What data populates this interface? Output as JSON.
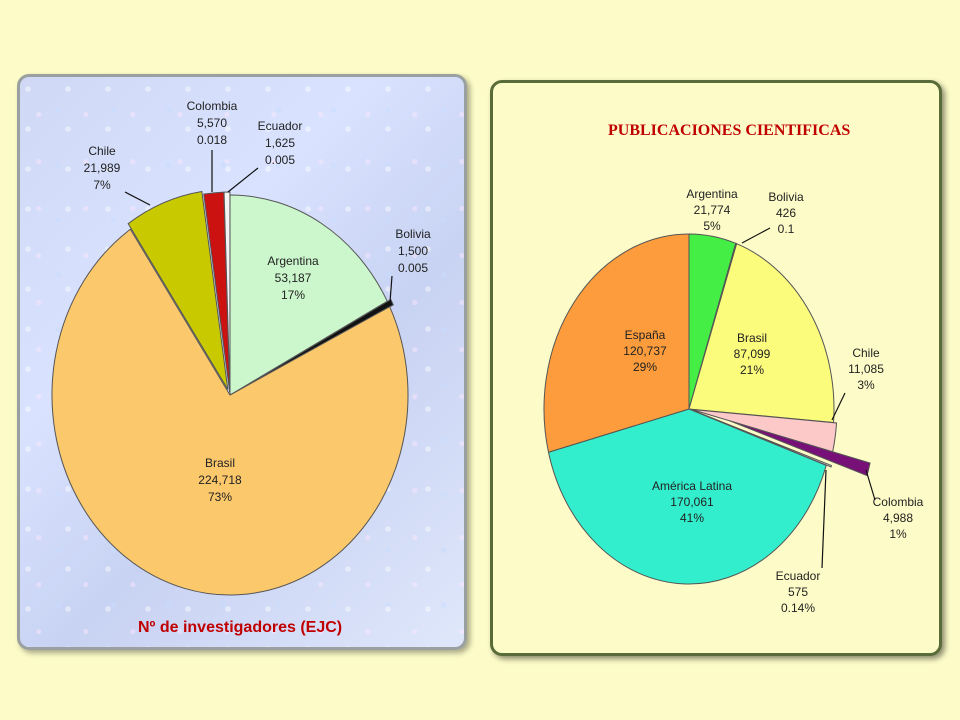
{
  "left_chart": {
    "title": "Nº de investigadores (EJC)",
    "slices": [
      {
        "name": "Argentina",
        "value_text": "53,187",
        "share_text": "17%",
        "value": 53187,
        "color": "#ccf7cc"
      },
      {
        "name": "Bolivia",
        "value_text": "1,500",
        "share_text": "0.005",
        "value": 1500,
        "color": "#111111"
      },
      {
        "name": "Brasil",
        "value_text": "224,718",
        "share_text": "73%",
        "value": 224718,
        "color": "#fcc86c"
      },
      {
        "name": "Chile",
        "value_text": "21,989",
        "share_text": "7%",
        "value": 21989,
        "color": "#c9c900"
      },
      {
        "name": "Colombia",
        "value_text": "5,570",
        "share_text": "0.018",
        "value": 5570,
        "color": "#cc1111"
      },
      {
        "name": "Ecuador",
        "value_text": "1,625",
        "share_text": "0.005",
        "value": 1625,
        "color": "#f4f4f4"
      }
    ]
  },
  "right_chart": {
    "title": "PUBLICACIONES CIENTIFICAS",
    "slices": [
      {
        "name": "Argentina",
        "value_text": "21,774",
        "share_text": "5%",
        "value": 21774,
        "color": "#44ee44"
      },
      {
        "name": "Brasil",
        "value_text": "87,099",
        "share_text": "21%",
        "value": 87099,
        "color": "#fcfc7c"
      },
      {
        "name": "Chile",
        "value_text": "11,085",
        "share_text": "3%",
        "value": 11085,
        "color": "#fcc8c8"
      },
      {
        "name": "Colombia",
        "value_text": "4,988",
        "share_text": "1%",
        "value": 4988,
        "color": "#771177"
      },
      {
        "name": "Ecuador",
        "value_text": "575",
        "share_text": "0.14%",
        "value": 575,
        "color": "#eeeeee"
      },
      {
        "name": "América Latina",
        "value_text": "170,061",
        "share_text": "41%",
        "value": 170061,
        "color": "#33eecc"
      },
      {
        "name": "España",
        "value_text": "120,737",
        "share_text": "29%",
        "value": 120737,
        "color": "#fc9c3c"
      },
      {
        "name": "Bolivia",
        "value_text": "426",
        "share_text": "0.1",
        "value": 426,
        "color": "#888888"
      }
    ]
  },
  "chart_data": [
    {
      "type": "pie",
      "title": "Nº de investigadores (EJC)",
      "categories": [
        "Argentina",
        "Bolivia",
        "Brasil",
        "Chile",
        "Colombia",
        "Ecuador"
      ],
      "values": [
        53187,
        1500,
        224718,
        21989,
        5570,
        1625
      ],
      "labels": [
        "17%",
        "0.005",
        "73%",
        "7%",
        "0.018",
        "0.005"
      ]
    },
    {
      "type": "pie",
      "title": "PUBLICACIONES CIENTIFICAS",
      "categories": [
        "Argentina",
        "Bolivia",
        "Brasil",
        "Chile",
        "Colombia",
        "Ecuador",
        "América Latina",
        "España"
      ],
      "values": [
        21774,
        426,
        87099,
        11085,
        4988,
        575,
        170061,
        120737
      ],
      "labels": [
        "5%",
        "0.1",
        "21%",
        "3%",
        "1%",
        "0.14%",
        "41%",
        "29%"
      ]
    }
  ]
}
